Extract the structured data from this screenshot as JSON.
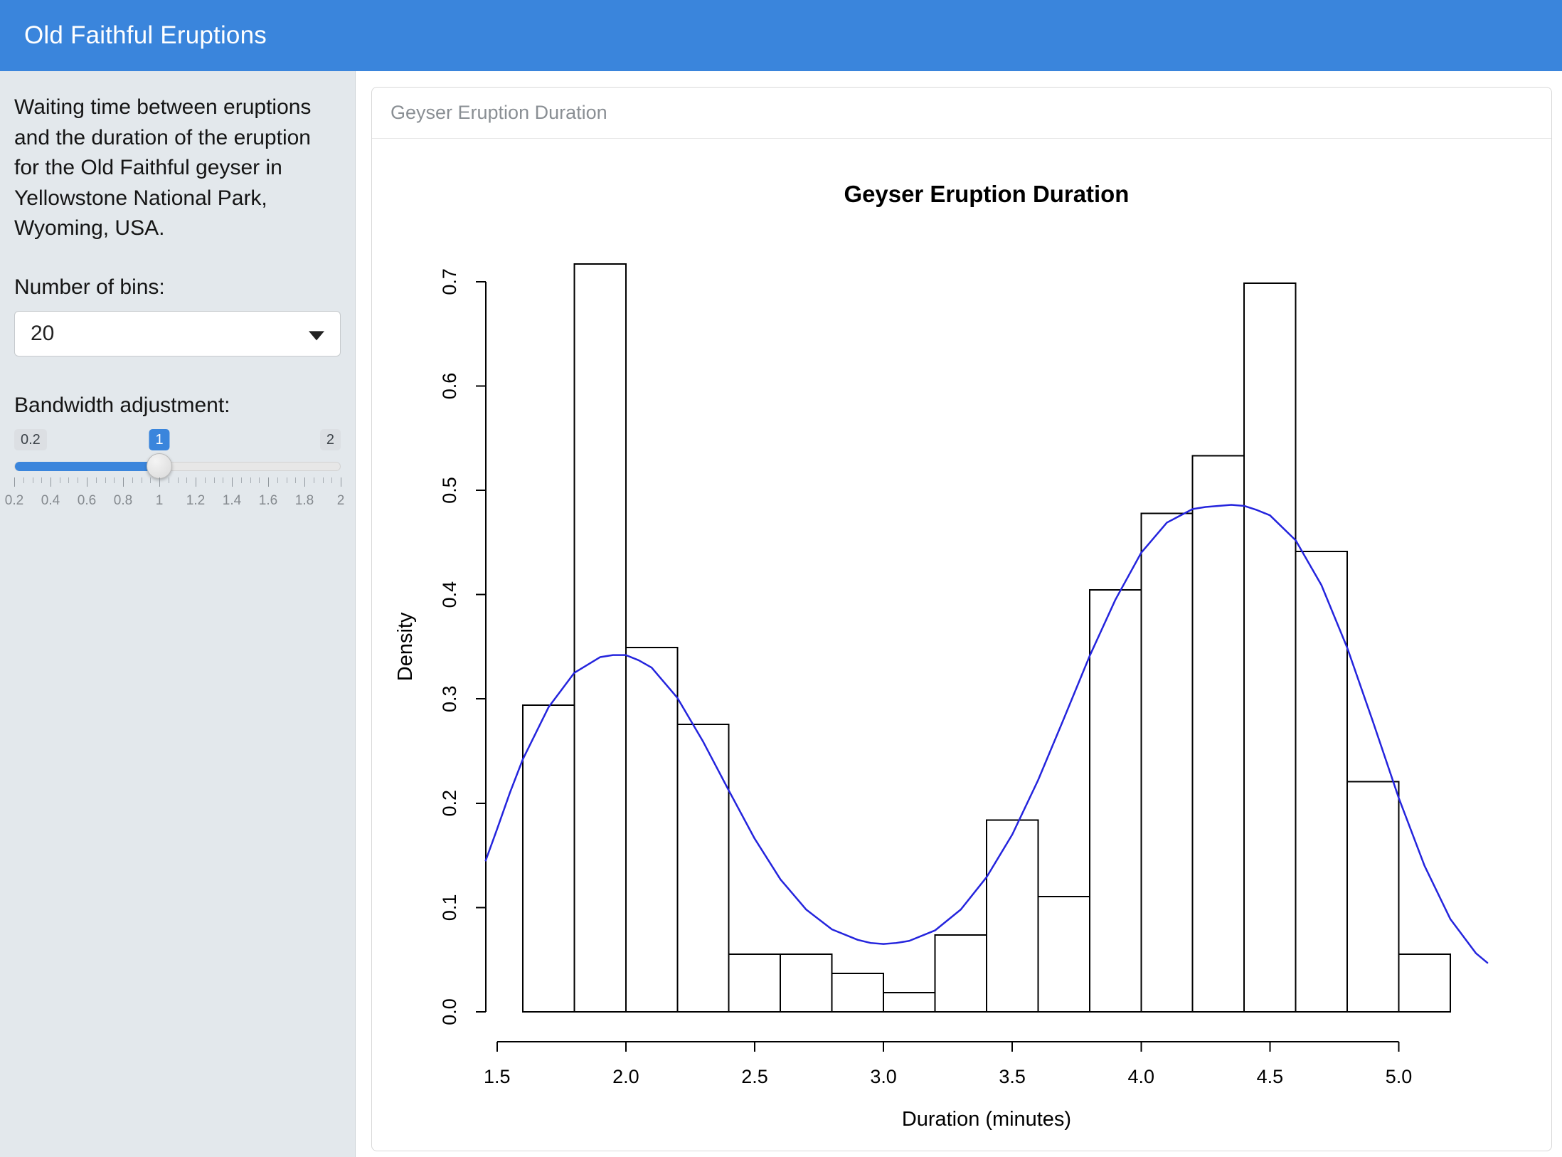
{
  "header": {
    "title": "Old Faithful Eruptions",
    "bg_color": "#3a85dc"
  },
  "sidebar": {
    "description": "Waiting time between eruptions and the duration of the eruption for the Old Faithful geyser in Yellowstone National Park, Wyoming, USA.",
    "bins_label": "Number of bins:",
    "bins_value": "20",
    "bandwidth_label": "Bandwidth adjustment:",
    "slider": {
      "min": 0.2,
      "max": 2,
      "value": 1,
      "min_label": "0.2",
      "max_label": "2",
      "value_label": "1",
      "tick_labels": [
        "0.2",
        "0.4",
        "0.6",
        "0.8",
        "1",
        "1.2",
        "1.4",
        "1.6",
        "1.8",
        "2"
      ],
      "accent_color": "#3a85dc"
    }
  },
  "card": {
    "header": "Geyser Eruption Duration"
  },
  "chart_data": {
    "type": "histogram",
    "title": "Geyser Eruption Duration",
    "xlabel": "Duration (minutes)",
    "ylabel": "Density",
    "xlim": [
      1.456,
      5.344
    ],
    "ylim": [
      -0.0287,
      0.7456
    ],
    "x_ticks": [
      1.5,
      2.0,
      2.5,
      3.0,
      3.5,
      4.0,
      4.5,
      5.0
    ],
    "x_tick_labels": [
      "1.5",
      "2.0",
      "2.5",
      "3.0",
      "3.5",
      "4.0",
      "4.5",
      "5.0"
    ],
    "y_ticks": [
      0.0,
      0.1,
      0.2,
      0.3,
      0.4,
      0.5,
      0.6,
      0.7
    ],
    "y_tick_labels": [
      "0.0",
      "0.1",
      "0.2",
      "0.3",
      "0.4",
      "0.5",
      "0.6",
      "0.7"
    ],
    "histogram": {
      "bin_start": 1.6,
      "bin_width": 0.2,
      "densities": [
        0.2941,
        0.7169,
        0.3493,
        0.2757,
        0.0551,
        0.0551,
        0.0368,
        0.0184,
        0.0735,
        0.1838,
        0.1103,
        0.4044,
        0.4779,
        0.5331,
        0.6985,
        0.4412,
        0.2206,
        0.0551
      ]
    },
    "bar_fill": "#ffffff",
    "bar_stroke": "#000000",
    "density_curve": {
      "color": "#2424dd",
      "points": [
        [
          1.456,
          0.145
        ],
        [
          1.5,
          0.175
        ],
        [
          1.55,
          0.21
        ],
        [
          1.6,
          0.242
        ],
        [
          1.7,
          0.292
        ],
        [
          1.8,
          0.325
        ],
        [
          1.9,
          0.34
        ],
        [
          1.95,
          0.342
        ],
        [
          2.0,
          0.342
        ],
        [
          2.05,
          0.337
        ],
        [
          2.1,
          0.33
        ],
        [
          2.2,
          0.301
        ],
        [
          2.3,
          0.259
        ],
        [
          2.4,
          0.212
        ],
        [
          2.5,
          0.166
        ],
        [
          2.6,
          0.127
        ],
        [
          2.7,
          0.098
        ],
        [
          2.8,
          0.079
        ],
        [
          2.9,
          0.069
        ],
        [
          2.95,
          0.066
        ],
        [
          3.0,
          0.065
        ],
        [
          3.05,
          0.066
        ],
        [
          3.1,
          0.068
        ],
        [
          3.2,
          0.078
        ],
        [
          3.3,
          0.098
        ],
        [
          3.4,
          0.129
        ],
        [
          3.5,
          0.17
        ],
        [
          3.6,
          0.222
        ],
        [
          3.7,
          0.281
        ],
        [
          3.8,
          0.341
        ],
        [
          3.9,
          0.395
        ],
        [
          4.0,
          0.44
        ],
        [
          4.1,
          0.469
        ],
        [
          4.2,
          0.482
        ],
        [
          4.25,
          0.484
        ],
        [
          4.3,
          0.485
        ],
        [
          4.35,
          0.486
        ],
        [
          4.4,
          0.485
        ],
        [
          4.45,
          0.481
        ],
        [
          4.5,
          0.476
        ],
        [
          4.6,
          0.452
        ],
        [
          4.7,
          0.409
        ],
        [
          4.8,
          0.349
        ],
        [
          4.9,
          0.278
        ],
        [
          5.0,
          0.205
        ],
        [
          5.1,
          0.14
        ],
        [
          5.2,
          0.089
        ],
        [
          5.3,
          0.056
        ],
        [
          5.344,
          0.047
        ]
      ]
    }
  }
}
